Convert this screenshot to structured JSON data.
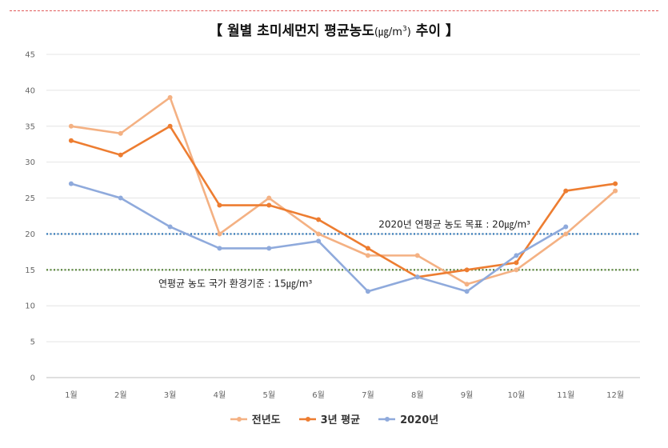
{
  "title": {
    "main": "【 월별  초미세먼지  평균농도",
    "unit": "(㎍/m",
    "unit_sup": "3",
    "unit_close": ")",
    "tail": "  추이 】"
  },
  "chart_data": {
    "type": "line",
    "categories": [
      "1월",
      "2월",
      "3월",
      "4월",
      "5월",
      "6월",
      "7월",
      "8월",
      "9월",
      "10월",
      "11월",
      "12월"
    ],
    "ylim": [
      0,
      45
    ],
    "yticks": [
      0,
      5,
      10,
      15,
      20,
      25,
      30,
      35,
      40,
      45
    ],
    "grid": true,
    "legend_position": "bottom",
    "series": [
      {
        "name": "전년도",
        "color": "#f4b183",
        "values": [
          35,
          34,
          39,
          20,
          25,
          20,
          17,
          17,
          13,
          15,
          20,
          26
        ]
      },
      {
        "name": "3년 평균",
        "color": "#ed7d31",
        "values": [
          33,
          31,
          35,
          24,
          24,
          22,
          18,
          14,
          15,
          16,
          26,
          27
        ]
      },
      {
        "name": "2020년",
        "color": "#8faadc",
        "values": [
          27,
          25,
          21,
          18,
          18,
          19,
          12,
          14,
          12,
          17,
          21,
          null
        ]
      }
    ],
    "reference_lines": [
      {
        "value": 20,
        "color": "#2e75b6",
        "label": "2020년 연평균 농도 목표 : 20㎍/m³"
      },
      {
        "value": 15,
        "color": "#548235",
        "label": "연평균 농도 국가 환경기준 : 15㎍/m³"
      }
    ]
  }
}
